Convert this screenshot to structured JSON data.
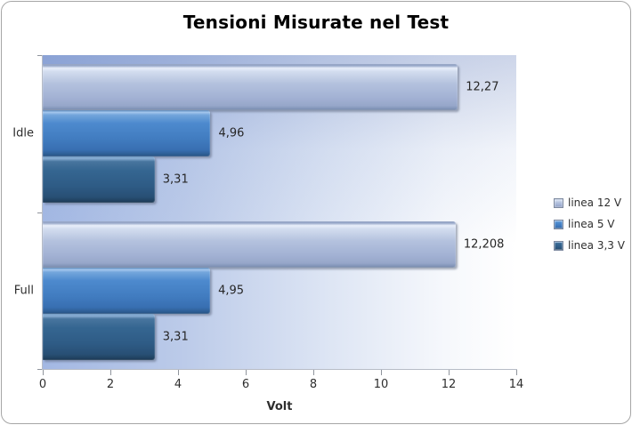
{
  "chart_data": {
    "type": "bar",
    "orientation": "horizontal",
    "title": "Tensioni Misurate nel Test",
    "xlabel": "Volt",
    "categories": [
      "Idle",
      "Full"
    ],
    "series": [
      {
        "name": "linea 12 V",
        "values": [
          12.27,
          12.208
        ],
        "value_labels": [
          "12,27",
          "12,208"
        ],
        "color": "#a9bada"
      },
      {
        "name": "linea 5 V",
        "values": [
          4.96,
          4.95
        ],
        "value_labels": [
          "4,96",
          "4,95"
        ],
        "color": "#4382c6"
      },
      {
        "name": "linea 3,3 V",
        "values": [
          3.31,
          3.31
        ],
        "value_labels": [
          "3,31",
          "3,31"
        ],
        "color": "#2e6193"
      }
    ],
    "xlim": [
      0,
      14
    ],
    "x_ticks": [
      0,
      2,
      4,
      6,
      8,
      10,
      12,
      14
    ],
    "grid": false,
    "legend_position": "right"
  },
  "style_colors": {
    "chart_border": "#a6a6a6",
    "axis_line": "#b7bcc6",
    "plot_bg_left": "#a3b8e3",
    "plot_bg_right": "#ffffff",
    "text": "#2e2e2e"
  }
}
